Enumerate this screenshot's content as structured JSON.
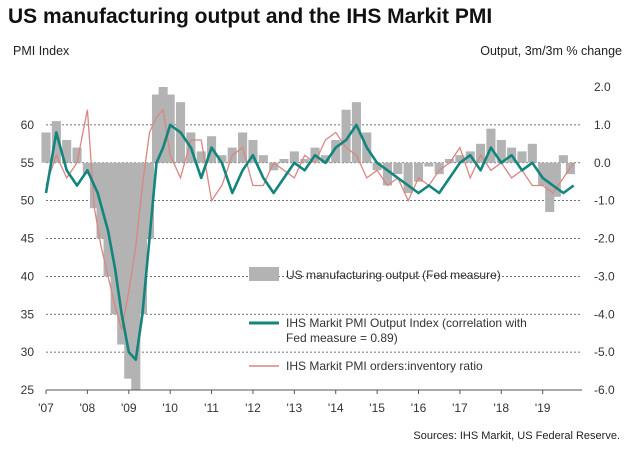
{
  "header": {
    "title": "US manufacturing output and the IHS Markit PMI",
    "left_axis_title": "PMI Index",
    "right_axis_title": "Output, 3m/3m % change"
  },
  "footer": {
    "source": "Sources: IHS Markit, US Federal Reserve."
  },
  "colors": {
    "bars": "#b3b3b3",
    "output_index": "#12857c",
    "orders_ratio": "#d98683",
    "grid": "#444444"
  },
  "chart_data": {
    "type": "combo",
    "x_tick_labels": [
      "'07",
      "'08",
      "'09",
      "'10",
      "'11",
      "'12",
      "'13",
      "'14",
      "'15",
      "'16",
      "'17",
      "'18",
      "'19"
    ],
    "left_axis": {
      "ylim": [
        25,
        65
      ],
      "ticks": [
        25,
        30,
        35,
        40,
        45,
        50,
        55,
        60
      ]
    },
    "right_axis": {
      "ylim": [
        -6.0,
        2.0
      ],
      "ticks": [
        "2.0",
        "1.0",
        "0.0",
        "-1.0",
        "-2.0",
        "-3.0",
        "-4.0",
        "-5.0",
        "-6.0"
      ]
    },
    "gridlines_left": [
      60,
      55,
      50,
      45,
      40,
      35,
      30
    ],
    "legend": {
      "placement": "bottom-right",
      "items": [
        "US manufacturing output (Fed measure)",
        "IHS Markit PMI Output Index (correlation with Fed measure = 0.89)",
        "IHS Markit PMI orders:inventory ratio"
      ]
    },
    "series": [
      {
        "name": "US manufacturing output (Fed measure)",
        "type": "bar",
        "axis": "right",
        "x": [
          2007.0,
          2007.25,
          2007.5,
          2007.75,
          2008.0,
          2008.17,
          2008.33,
          2008.5,
          2008.67,
          2008.83,
          2009.0,
          2009.17,
          2009.33,
          2009.5,
          2009.67,
          2009.83,
          2010.0,
          2010.25,
          2010.5,
          2010.75,
          2011.0,
          2011.25,
          2011.5,
          2011.75,
          2012.0,
          2012.25,
          2012.5,
          2012.75,
          2013.0,
          2013.25,
          2013.5,
          2013.75,
          2014.0,
          2014.25,
          2014.5,
          2014.75,
          2015.0,
          2015.25,
          2015.5,
          2015.75,
          2016.0,
          2016.25,
          2016.5,
          2016.75,
          2017.0,
          2017.25,
          2017.5,
          2017.75,
          2018.0,
          2018.25,
          2018.5,
          2018.75,
          2019.0,
          2019.17,
          2019.33,
          2019.5,
          2019.67
        ],
        "values": [
          0.8,
          1.1,
          0.6,
          0.4,
          -0.3,
          -1.2,
          -2.0,
          -3.0,
          -4.0,
          -4.8,
          -5.7,
          -6.0,
          -4.0,
          -2.0,
          1.8,
          2.0,
          1.8,
          1.6,
          0.8,
          0.3,
          0.7,
          0.2,
          0.4,
          0.8,
          0.6,
          0.2,
          -0.2,
          0.1,
          0.3,
          0.1,
          0.4,
          0.2,
          0.6,
          1.4,
          1.6,
          0.8,
          -0.2,
          -0.6,
          -0.3,
          -0.8,
          -0.5,
          -0.1,
          -0.3,
          0.1,
          0.2,
          0.3,
          0.5,
          0.9,
          0.6,
          0.4,
          0.3,
          0.5,
          -0.6,
          -1.3,
          -0.9,
          0.2,
          -0.3
        ]
      },
      {
        "name": "IHS Markit PMI Output Index (correlation with Fed measure = 0.89)",
        "type": "line",
        "axis": "left",
        "x": [
          2007.0,
          2007.25,
          2007.5,
          2007.75,
          2008.0,
          2008.25,
          2008.5,
          2008.67,
          2008.83,
          2009.0,
          2009.17,
          2009.33,
          2009.5,
          2009.67,
          2009.83,
          2010.0,
          2010.25,
          2010.5,
          2010.75,
          2011.0,
          2011.25,
          2011.5,
          2011.75,
          2012.0,
          2012.25,
          2012.5,
          2012.75,
          2013.0,
          2013.25,
          2013.5,
          2013.75,
          2014.0,
          2014.25,
          2014.5,
          2014.75,
          2015.0,
          2015.25,
          2015.5,
          2015.75,
          2016.0,
          2016.25,
          2016.5,
          2016.75,
          2017.0,
          2017.25,
          2017.5,
          2017.75,
          2018.0,
          2018.25,
          2018.5,
          2018.75,
          2019.0,
          2019.25,
          2019.5,
          2019.75
        ],
        "values": [
          51,
          59,
          54,
          52,
          54,
          51,
          46,
          41,
          35,
          30,
          29,
          35,
          45,
          55,
          57,
          60,
          59,
          57,
          53,
          57,
          55,
          51,
          54,
          56,
          53,
          51,
          53,
          55,
          54,
          56,
          55,
          57,
          58,
          60,
          57,
          55,
          54,
          53,
          52,
          51,
          52,
          51,
          53,
          55,
          56,
          54,
          57,
          55,
          56,
          54,
          55,
          53,
          52,
          51,
          52
        ]
      },
      {
        "name": "IHS Markit PMI orders:inventory ratio",
        "type": "line",
        "axis": "left",
        "x": [
          2007.0,
          2007.25,
          2007.5,
          2007.75,
          2008.0,
          2008.17,
          2008.33,
          2008.5,
          2008.67,
          2008.83,
          2009.0,
          2009.17,
          2009.33,
          2009.5,
          2009.67,
          2009.83,
          2010.0,
          2010.25,
          2010.5,
          2010.75,
          2011.0,
          2011.25,
          2011.5,
          2011.75,
          2012.0,
          2012.25,
          2012.5,
          2012.75,
          2013.0,
          2013.25,
          2013.5,
          2013.75,
          2014.0,
          2014.25,
          2014.5,
          2014.75,
          2015.0,
          2015.25,
          2015.5,
          2015.75,
          2016.0,
          2016.25,
          2016.5,
          2016.75,
          2017.0,
          2017.25,
          2017.5,
          2017.75,
          2018.0,
          2018.25,
          2018.5,
          2018.75,
          2019.0,
          2019.25,
          2019.5,
          2019.75
        ],
        "values": [
          52,
          56,
          53,
          55,
          62,
          49,
          44,
          40,
          36,
          33,
          38,
          44,
          52,
          59,
          61,
          62,
          56,
          53,
          58,
          58,
          50,
          52,
          56,
          57,
          52,
          52,
          55,
          54,
          53,
          56,
          55,
          58,
          59,
          57,
          56,
          53,
          54,
          52,
          53,
          50,
          53,
          52,
          54,
          55,
          57,
          53,
          56,
          54,
          55,
          53,
          54,
          52,
          52,
          51,
          53,
          55
        ]
      }
    ]
  }
}
